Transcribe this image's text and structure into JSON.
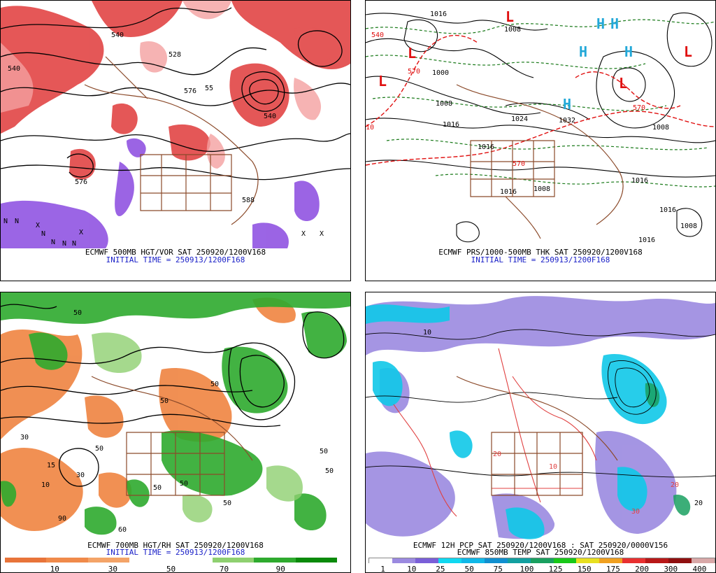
{
  "panels": [
    {
      "caption": "ECMWF 500MB HGT/VOR SAT 250920/1200V168",
      "initial_time": "INITIAL TIME = 250913/1200F168",
      "contour_labels": [
        "540",
        "540",
        "528",
        "576",
        "55",
        "540",
        "576",
        "588"
      ],
      "extrema_marks": [
        "N",
        "N",
        "N",
        "N",
        "X",
        "X",
        "N",
        "N",
        "X",
        "X"
      ]
    },
    {
      "caption": "ECMWF PRS/1000-500MB THK SAT 250920/1200V168",
      "initial_time": "INITIAL TIME = 250913/1200F168",
      "isobar_labels": [
        "1016",
        "1008",
        "1000",
        "1008",
        "1016",
        "1024",
        "1032",
        "1016",
        "1016",
        "1008",
        "1008",
        "1016",
        "1016",
        "1008",
        "1016"
      ],
      "thickness_labels": [
        "540",
        "570",
        "570",
        "570",
        "10"
      ],
      "high_symbol": "H",
      "low_symbol": "L",
      "colors": {
        "isobar": "#000000",
        "thickness_cold": "#1a7a1a",
        "thickness_warm": "#e01010",
        "high": "#22a8d8",
        "low": "#e01010"
      }
    },
    {
      "caption": "ECMWF 700MB HGT/RH SAT 250920/1200V168",
      "initial_time": "INITIAL TIME = 250913/1200F168",
      "field_labels": [
        "50",
        "50",
        "50",
        "30",
        "50",
        "15",
        "10",
        "30",
        "50",
        "50",
        "50",
        "90",
        "50",
        "50",
        "60"
      ],
      "colorbar": {
        "colors": [
          "#e8743a",
          "#f08a4a",
          "#f4a468",
          "#ffffff",
          "#ffffff",
          "#8fd070",
          "#2eaa2e",
          "#0a8a0a"
        ],
        "ticks": [
          "10",
          "30",
          "50",
          "70",
          "90"
        ]
      }
    },
    {
      "caption": "ECMWF 12H PCP SAT 250920/1200V168 : SAT 250920/0000V156",
      "caption2": "ECMWF 850MB TEMP SAT 250920/1200V168",
      "field_labels": [
        "10",
        "20",
        "10",
        "30",
        "20",
        "20"
      ],
      "colorbar": {
        "colors": [
          "#ffffff",
          "#9b8ae0",
          "#7a5fd8",
          "#10d8f0",
          "#10b8e8",
          "#1090d0",
          "#12a0a0",
          "#1aa060",
          "#18c818",
          "#e8e020",
          "#f0a020",
          "#e83030",
          "#b81818",
          "#901010",
          "#d8a8a8"
        ],
        "ticks": [
          "1",
          "10",
          "25",
          "50",
          "75",
          "100",
          "125",
          "150",
          "175",
          "200",
          "300",
          "400"
        ]
      }
    }
  ]
}
